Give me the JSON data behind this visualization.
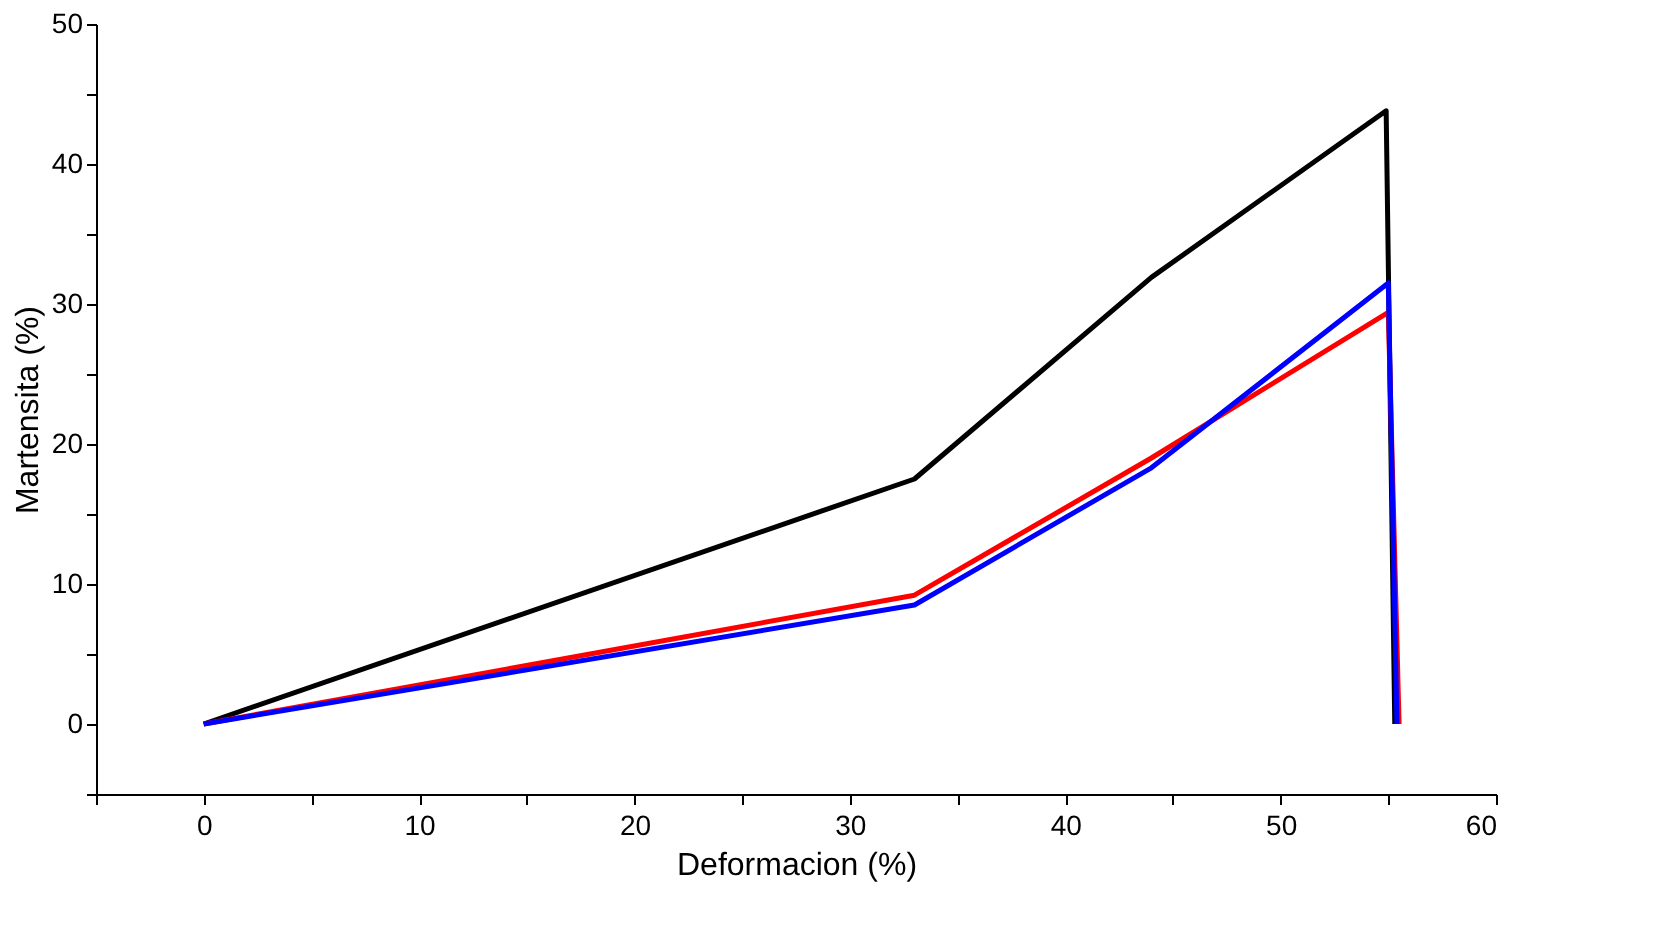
{
  "chart_data": {
    "type": "line",
    "xlabel": "Deformacion (%)",
    "ylabel": "Martensita (%)",
    "xlim": [
      -5,
      60
    ],
    "ylim": [
      -5,
      50
    ],
    "xticks": [
      {
        "value": -5,
        "label": null
      },
      0,
      {
        "value": 5,
        "label": null
      },
      10,
      {
        "value": 15,
        "label": null
      },
      20,
      {
        "value": 25,
        "label": null
      },
      30,
      {
        "value": 35,
        "label": null
      },
      40,
      {
        "value": 45,
        "label": null
      },
      50,
      {
        "value": 55,
        "label": null
      },
      60
    ],
    "yticks": [
      {
        "value": -5,
        "label": null
      },
      0,
      {
        "value": 5,
        "label": null
      },
      10,
      {
        "value": 15,
        "label": null
      },
      20,
      {
        "value": 25,
        "label": null
      },
      30,
      {
        "value": 35,
        "label": null
      },
      40,
      {
        "value": 45,
        "label": null
      },
      50
    ],
    "grid": false,
    "legend": false,
    "marker": "none",
    "line_style": "solid",
    "series": [
      {
        "color": "#000000",
        "x": [
          0,
          33,
          44,
          54.9,
          55.3
        ],
        "values": [
          0,
          17.5,
          31.9,
          43.8,
          0
        ]
      },
      {
        "color": "#ff0000",
        "x": [
          0,
          33,
          44,
          55,
          55.5
        ],
        "values": [
          0,
          9.2,
          19.0,
          29.4,
          0
        ]
      },
      {
        "color": "#0000ff",
        "x": [
          0,
          33,
          44,
          55,
          55.4
        ],
        "values": [
          0,
          8.5,
          18.3,
          31.5,
          0
        ]
      }
    ]
  }
}
